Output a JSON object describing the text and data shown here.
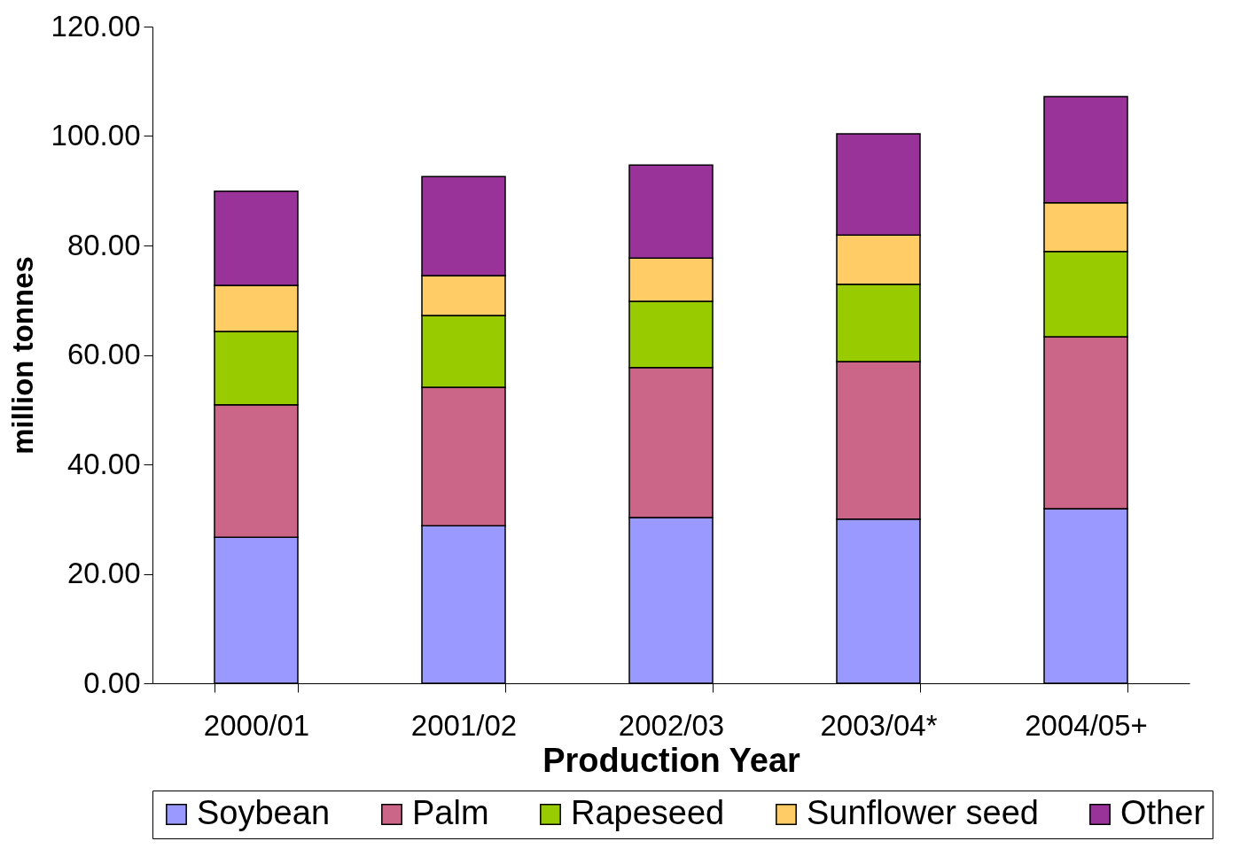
{
  "chart_data": {
    "type": "bar",
    "stacked": true,
    "xlabel": "Production Year",
    "ylabel": "million tonnes",
    "categories": [
      "2000/01",
      "2001/02",
      "2002/03",
      "2003/04*",
      "2004/05+"
    ],
    "series": [
      {
        "name": "Soybean",
        "color": "#9999ff",
        "values": [
          26.7,
          28.8,
          30.3,
          30.0,
          31.9
        ]
      },
      {
        "name": "Palm",
        "color": "#cc6688",
        "values": [
          24.2,
          25.3,
          27.4,
          28.8,
          31.4
        ]
      },
      {
        "name": "Rapeseed",
        "color": "#99cc00",
        "values": [
          13.4,
          13.1,
          12.1,
          14.1,
          15.6
        ]
      },
      {
        "name": "Sunflower seed",
        "color": "#ffcc66",
        "values": [
          8.4,
          7.3,
          7.9,
          9.0,
          8.9
        ]
      },
      {
        "name": "Other",
        "color": "#993399",
        "values": [
          17.2,
          18.1,
          17.0,
          18.5,
          19.4
        ]
      }
    ],
    "ylim": [
      0,
      120
    ],
    "yticks": [
      {
        "value": 0,
        "label": "0.00"
      },
      {
        "value": 20,
        "label": "20.00"
      },
      {
        "value": 40,
        "label": "40.00"
      },
      {
        "value": 60,
        "label": "60.00"
      },
      {
        "value": 80,
        "label": "80.00"
      },
      {
        "value": 100,
        "label": "100.00"
      },
      {
        "value": 120,
        "label": "120.00"
      }
    ],
    "grid": false,
    "legend": "bottom"
  }
}
